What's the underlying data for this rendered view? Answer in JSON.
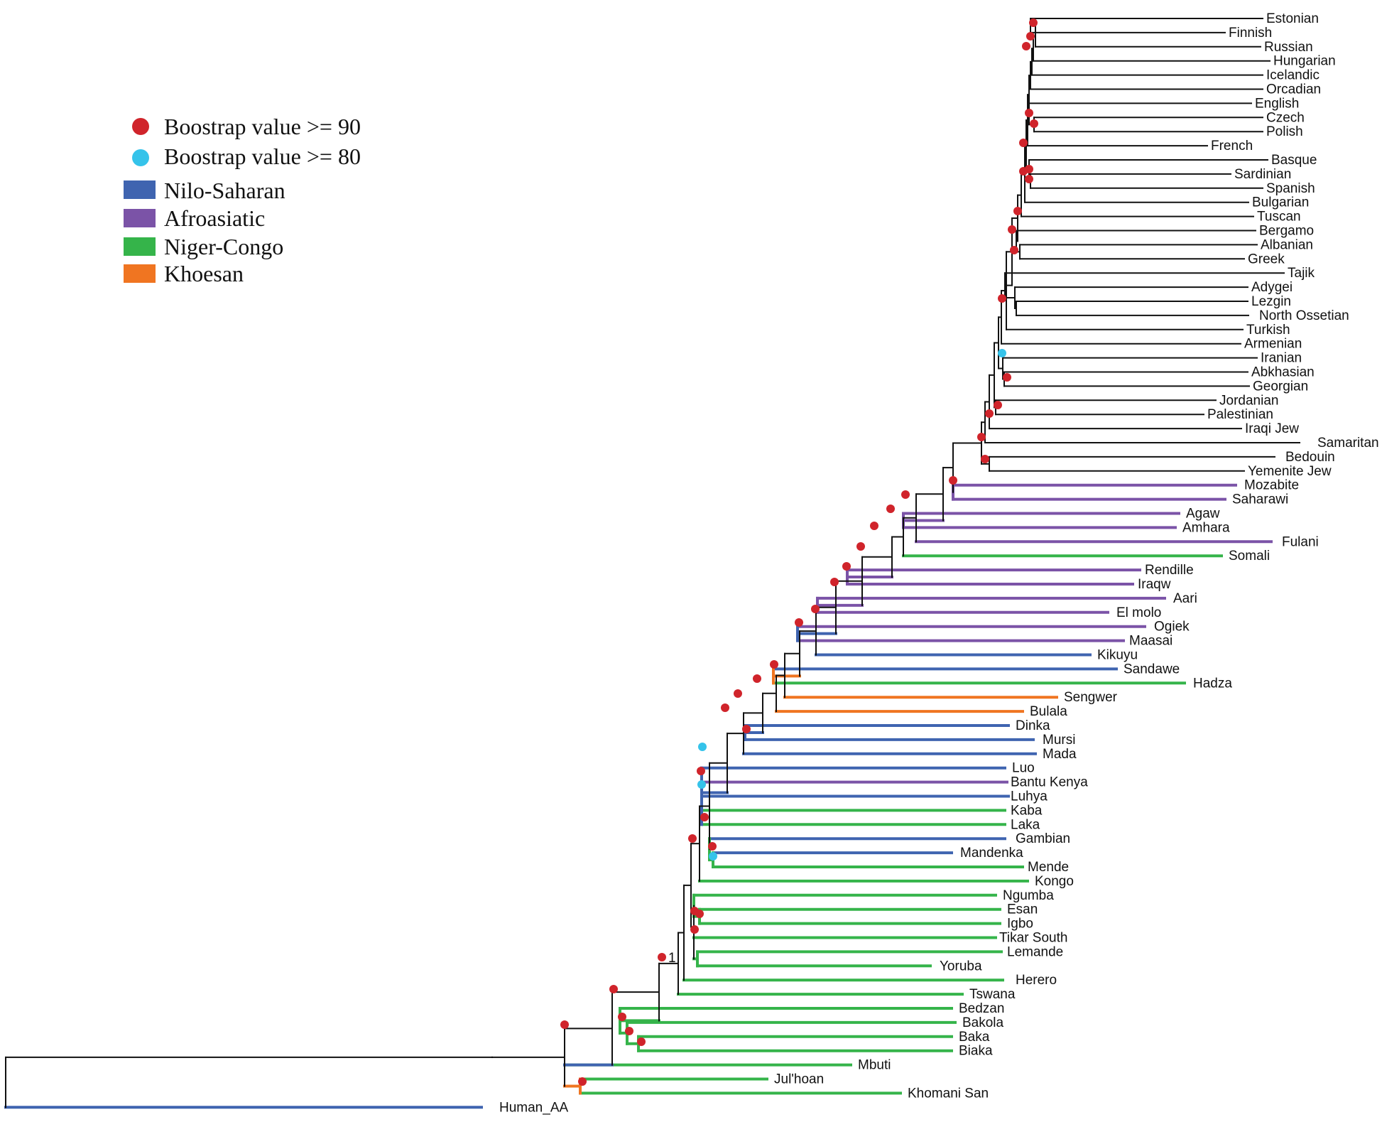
{
  "legend": {
    "support": [
      {
        "label": "Boostrap value >= 90",
        "color": "#d0242b"
      },
      {
        "label": "Boostrap value >= 80",
        "color": "#35c3ea"
      }
    ],
    "groups": [
      {
        "label": "Nilo-Saharan",
        "color": "#3f64b0"
      },
      {
        "label": "Afroasiatic",
        "color": "#7b53a7"
      },
      {
        "label": "Niger-Congo",
        "color": "#35b44a"
      },
      {
        "label": "Khoesan",
        "color": "#f07521"
      }
    ]
  },
  "leaves": [
    "Estonian",
    "Finnish",
    "Russian",
    "Hungarian",
    "Icelandic",
    "Orcadian",
    "English",
    "Czech",
    "Polish",
    "French",
    "Basque",
    "Sardinian",
    "Spanish",
    "Bulgarian",
    "Tuscan",
    "Bergamo",
    "Albanian",
    "Greek",
    "Tajik",
    "Adygei",
    "Lezgin",
    "North Ossetian",
    "Turkish",
    "Armenian",
    "Iranian",
    "Abkhasian",
    "Georgian",
    "Jordanian",
    "Palestinian",
    "Iraqi Jew",
    "Samaritan",
    "Bedouin",
    "Yemenite Jew",
    "Mozabite",
    "Saharawi",
    "Agaw",
    "Amhara",
    "Fulani",
    "Somali",
    "Rendille",
    "Iraqw",
    "Aari",
    "El molo",
    "Ogiek",
    "Maasai",
    "Kikuyu",
    "Sandawe",
    "Hadza",
    "Sengwer",
    "Bulala",
    "Dinka",
    "Mursi",
    "Mada",
    "Luo",
    "Bantu Kenya",
    "Luhya",
    "Kaba",
    "Laka",
    "Gambian",
    "Mandenka",
    "Mende",
    "Kongo",
    "Ngumba",
    "Esan",
    "Igbo",
    "Tikar South",
    "Lemande",
    "Yoruba",
    "Herero",
    "Tswana",
    "Bedzan",
    "Bakola",
    "Baka",
    "Biaka",
    "Mbuti",
    "Jul'hoan",
    "Khomani San",
    "Human_AA"
  ],
  "annotation": "1"
}
